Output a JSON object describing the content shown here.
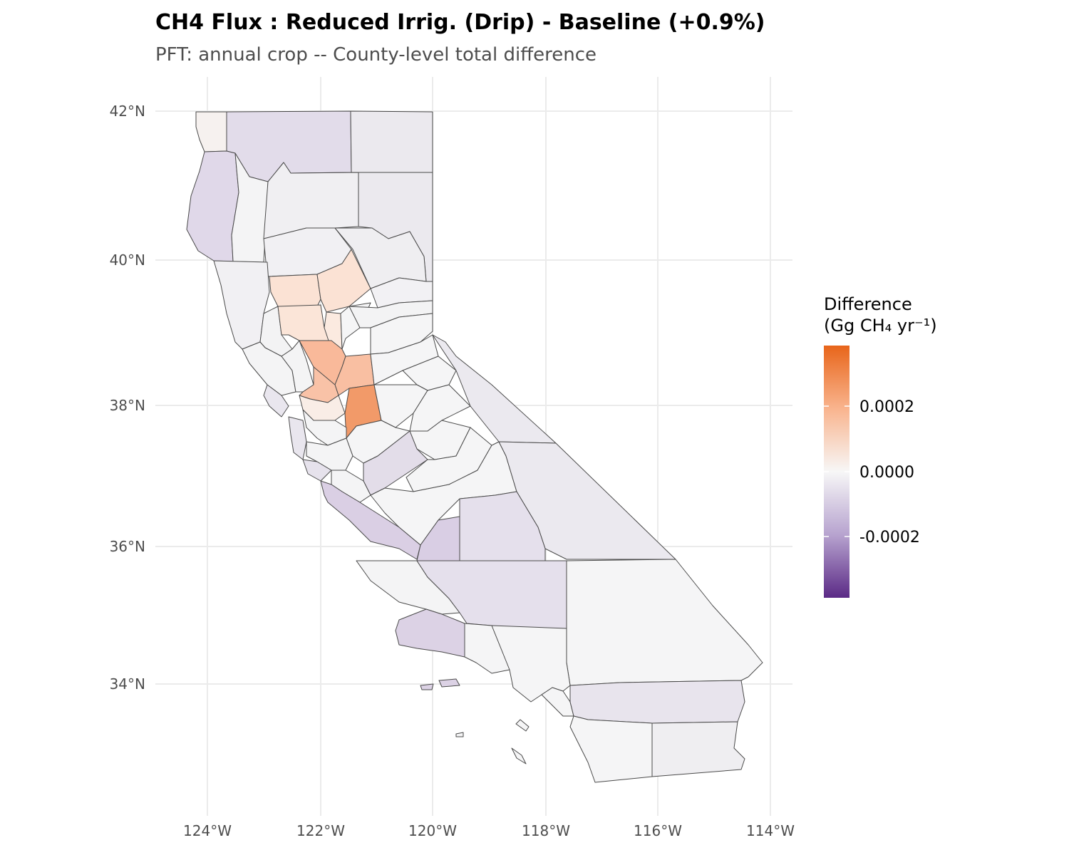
{
  "title": "CH4 Flux : Reduced Irrig. (Drip) - Baseline  (+0.9%)",
  "subtitle": "PFT: annual crop  -- County-level total difference",
  "map": {
    "lat_ticks": [
      {
        "value": 42,
        "label": "42°N"
      },
      {
        "value": 40,
        "label": "40°N"
      },
      {
        "value": 38,
        "label": "38°N"
      },
      {
        "value": 36,
        "label": "36°N"
      },
      {
        "value": 34,
        "label": "34°N"
      }
    ],
    "lon_ticks": [
      {
        "value": -124,
        "label": "124°W"
      },
      {
        "value": -122,
        "label": "122°W"
      },
      {
        "value": -120,
        "label": "120°W"
      },
      {
        "value": -118,
        "label": "118°W"
      },
      {
        "value": -116,
        "label": "116°W"
      },
      {
        "value": -114,
        "label": "114°W"
      }
    ],
    "colors": {
      "high": "#e8651a",
      "mid_high": "#f9b48e",
      "zero": "#f7f7f7",
      "mid_low": "#b7a3cf",
      "low": "#5b2a86",
      "grid": "#ebebeb",
      "border": "#4a4a4a"
    }
  },
  "legend": {
    "title_line1": "Difference",
    "title_line2": "(Gg CH₄ yr⁻¹)",
    "labels": [
      "0.0002",
      "0.0000",
      "-0.0002"
    ]
  }
}
